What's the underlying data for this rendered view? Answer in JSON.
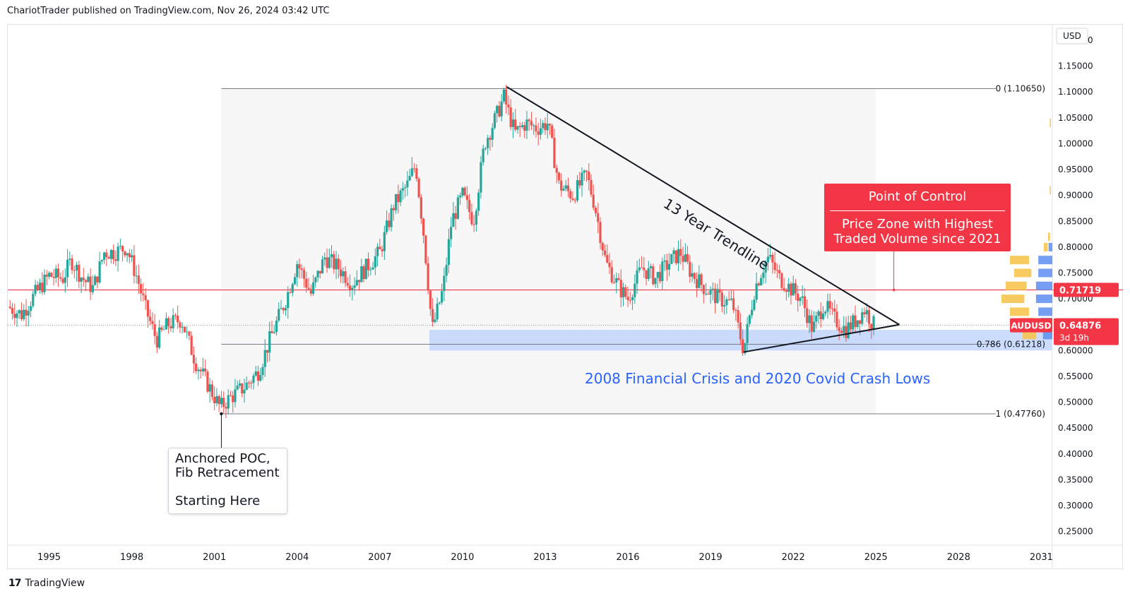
{
  "header": {
    "text": "ChariotTrader published on TradingView.com, Nov 26, 2024 03:42 UTC"
  },
  "footer": {
    "logo": "17",
    "brand": "TradingView"
  },
  "chart_data": {
    "type": "candlestick",
    "symbol": "AUDUSD",
    "currency": "USD",
    "xlim": [
      1993.5,
      2031.4
    ],
    "ylim": [
      0.24,
      1.23
    ],
    "x_ticks": [
      "1995",
      "1998",
      "2001",
      "2004",
      "2007",
      "2010",
      "2013",
      "2016",
      "2019",
      "2022",
      "2025",
      "2028",
      "2031"
    ],
    "x_tick_values": [
      1995,
      1998,
      2001,
      2004,
      2007,
      2010,
      2013,
      2016,
      2019,
      2022,
      2025,
      2028,
      2031
    ],
    "y_ticks": [
      "1.20000",
      "1.15000",
      "1.10000",
      "1.05000",
      "1.00000",
      "0.95000",
      "0.90000",
      "0.85000",
      "0.80000",
      "0.75000",
      "0.70000",
      "0.65000",
      "0.60000",
      "0.55000",
      "0.50000",
      "0.45000",
      "0.40000",
      "0.35000",
      "0.30000",
      "0.25000"
    ],
    "y_tick_values": [
      1.2,
      1.15,
      1.1,
      1.05,
      1.0,
      0.95,
      0.9,
      0.85,
      0.8,
      0.75,
      0.7,
      0.65,
      0.6,
      0.55,
      0.5,
      0.45,
      0.4,
      0.35,
      0.3,
      0.25
    ],
    "price_path": [
      [
        1993.5,
        0.685
      ],
      [
        1994.0,
        0.67
      ],
      [
        1994.5,
        0.71
      ],
      [
        1995.0,
        0.745
      ],
      [
        1995.5,
        0.74
      ],
      [
        1995.8,
        0.775
      ],
      [
        1996.2,
        0.74
      ],
      [
        1996.6,
        0.72
      ],
      [
        1997.0,
        0.79
      ],
      [
        1997.4,
        0.79
      ],
      [
        1997.8,
        0.8
      ],
      [
        1998.2,
        0.74
      ],
      [
        1998.5,
        0.68
      ],
      [
        1998.9,
        0.62
      ],
      [
        1999.3,
        0.65
      ],
      [
        1999.8,
        0.66
      ],
      [
        2000.3,
        0.58
      ],
      [
        2000.8,
        0.53
      ],
      [
        2001.2,
        0.49
      ],
      [
        2001.6,
        0.51
      ],
      [
        2002.1,
        0.53
      ],
      [
        2002.6,
        0.56
      ],
      [
        2003.0,
        0.62
      ],
      [
        2003.6,
        0.7
      ],
      [
        2004.0,
        0.77
      ],
      [
        2004.5,
        0.71
      ],
      [
        2005.0,
        0.78
      ],
      [
        2005.5,
        0.76
      ],
      [
        2006.0,
        0.73
      ],
      [
        2006.5,
        0.76
      ],
      [
        2007.0,
        0.79
      ],
      [
        2007.5,
        0.88
      ],
      [
        2008.0,
        0.92
      ],
      [
        2008.3,
        0.96
      ],
      [
        2008.6,
        0.82
      ],
      [
        2008.9,
        0.64
      ],
      [
        2009.3,
        0.72
      ],
      [
        2009.6,
        0.85
      ],
      [
        2010.0,
        0.9
      ],
      [
        2010.4,
        0.85
      ],
      [
        2010.8,
        1.0
      ],
      [
        2011.2,
        1.05
      ],
      [
        2011.5,
        1.09
      ],
      [
        2011.9,
        1.02
      ],
      [
        2012.3,
        1.04
      ],
      [
        2012.7,
        1.03
      ],
      [
        2013.1,
        1.04
      ],
      [
        2013.5,
        0.92
      ],
      [
        2014.0,
        0.9
      ],
      [
        2014.5,
        0.94
      ],
      [
        2014.8,
        0.88
      ],
      [
        2015.2,
        0.77
      ],
      [
        2015.7,
        0.72
      ],
      [
        2016.0,
        0.7
      ],
      [
        2016.5,
        0.76
      ],
      [
        2017.0,
        0.74
      ],
      [
        2017.5,
        0.77
      ],
      [
        2017.9,
        0.79
      ],
      [
        2018.3,
        0.75
      ],
      [
        2018.8,
        0.72
      ],
      [
        2019.3,
        0.7
      ],
      [
        2019.8,
        0.69
      ],
      [
        2020.2,
        0.6
      ],
      [
        2020.6,
        0.72
      ],
      [
        2020.9,
        0.76
      ],
      [
        2021.1,
        0.78
      ],
      [
        2021.5,
        0.74
      ],
      [
        2021.9,
        0.72
      ],
      [
        2022.3,
        0.7
      ],
      [
        2022.7,
        0.64
      ],
      [
        2023.1,
        0.69
      ],
      [
        2023.5,
        0.66
      ],
      [
        2023.9,
        0.64
      ],
      [
        2024.3,
        0.66
      ],
      [
        2024.6,
        0.68
      ],
      [
        2024.9,
        0.65
      ]
    ],
    "fib": {
      "start": 2001.25,
      "end": 2025.0,
      "levels": [
        {
          "label": "0 (1.10650)",
          "price": 1.1065
        },
        {
          "label": "0.786 (0.61218)",
          "price": 0.61218
        },
        {
          "label": "1 (0.47760)",
          "price": 0.4776
        }
      ]
    },
    "poc": {
      "price": 0.71719,
      "label": "0.71719",
      "color": "#f23645"
    },
    "last_price": {
      "price": 0.64876,
      "label": "AUDUSD",
      "value": "0.64876",
      "countdown": "3d 19h",
      "color": "#f23645"
    },
    "support_zone": {
      "from": 2008.8,
      "to": 2031.4,
      "low": 0.6,
      "high": 0.64,
      "color": "#bbd0fb"
    },
    "trendline_upper": [
      [
        2011.6,
        1.11
      ],
      [
        2025.85,
        0.65
      ]
    ],
    "trendline_lower": [
      [
        2020.2,
        0.597
      ],
      [
        2025.85,
        0.65
      ]
    ],
    "poc_pointer": [
      2025.65,
      0.795,
      0.717
    ],
    "volume_profile": [
      {
        "price": 1.04,
        "blue": 0.0,
        "yellow": 0.03
      },
      {
        "price": 0.91,
        "blue": 0.0,
        "yellow": 0.03
      },
      {
        "price": 0.82,
        "blue": 0.0,
        "yellow": 0.05
      },
      {
        "price": 0.8,
        "blue": 0.08,
        "yellow": 0.1
      },
      {
        "price": 0.775,
        "blue": 0.3,
        "yellow": 0.5
      },
      {
        "price": 0.75,
        "blue": 0.3,
        "yellow": 0.45
      },
      {
        "price": 0.725,
        "blue": 0.35,
        "yellow": 0.55
      },
      {
        "price": 0.7,
        "blue": 0.35,
        "yellow": 0.6
      },
      {
        "price": 0.675,
        "blue": 0.3,
        "yellow": 0.5
      },
      {
        "price": 0.655,
        "blue": 0.25,
        "yellow": 0.4
      },
      {
        "price": 0.63,
        "blue": 0.2,
        "yellow": 0.35
      }
    ],
    "colors": {
      "up": "#26a69a",
      "down": "#ef5350",
      "fib_line": "#787b86",
      "grid": "#f0f3fa"
    }
  },
  "annotations": {
    "trendline_label": "13 Year Trendline",
    "crisis_label": "2008 Financial Crisis and 2020 Covid Crash Lows",
    "anchor_note": {
      "line1": "Anchored POC,",
      "line2": "Fib Retracement",
      "line3": "Starting Here"
    },
    "poc_note": {
      "title": "Point of Control",
      "line1": "Price Zone with Highest",
      "line2": "Traded Volume since 2021"
    }
  }
}
